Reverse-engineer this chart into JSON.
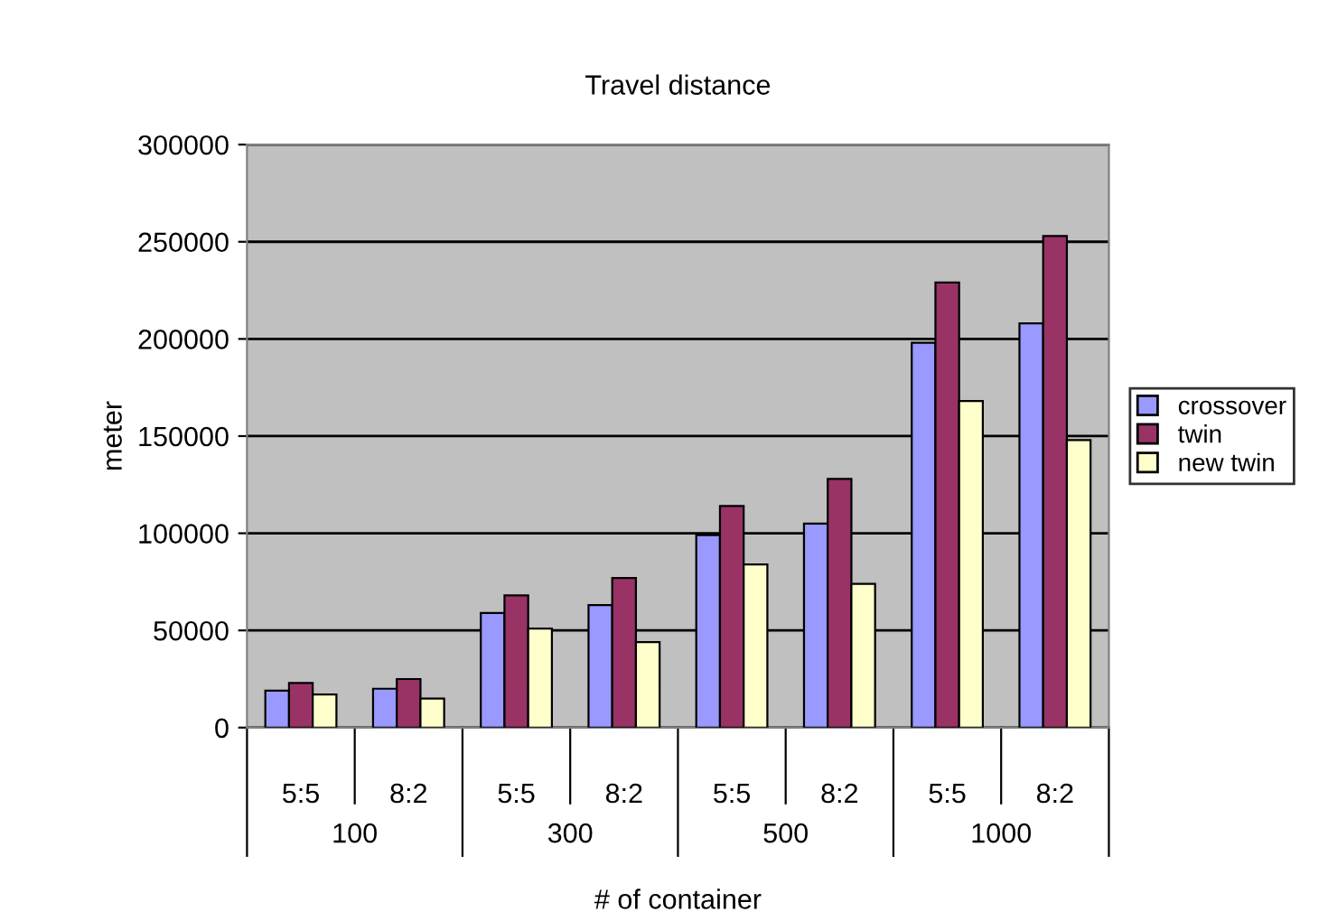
{
  "chart_data": {
    "type": "bar",
    "title": "Travel distance",
    "xlabel": "# of container",
    "ylabel": "meter",
    "categories": [
      "5:5",
      "8:2",
      "5:5",
      "8:2",
      "5:5",
      "8:2",
      "5:5",
      "8:2"
    ],
    "annotations": [
      "100",
      "300",
      "500",
      "1000"
    ],
    "series": [
      {
        "name": "crossover",
        "color": "#9999ff",
        "values": [
          19000,
          20000,
          59000,
          63000,
          99000,
          105000,
          198000,
          208000
        ]
      },
      {
        "name": "twin",
        "color": "#993366",
        "values": [
          23000,
          25000,
          68000,
          77000,
          114000,
          128000,
          229000,
          253000
        ]
      },
      {
        "name": "new twin",
        "color": "#ffffcc",
        "values": [
          17000,
          15000,
          51000,
          44000,
          84000,
          74000,
          168000,
          148000
        ]
      }
    ],
    "ylim": [
      0,
      300000
    ],
    "yticks": [
      0,
      50000,
      100000,
      150000,
      200000,
      250000,
      300000
    ],
    "grid": "y",
    "legend": "right"
  }
}
